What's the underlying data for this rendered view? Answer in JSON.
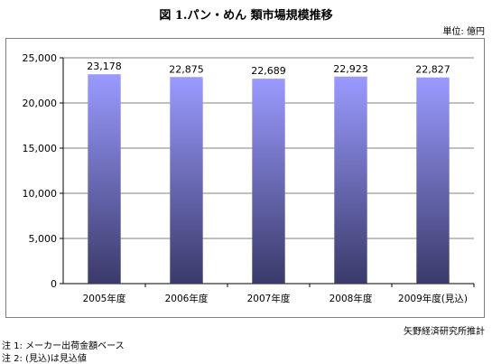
{
  "title": "図 1.パン・めん 類市場規模推移",
  "unit_label": "単位: 億円",
  "source": "矢野経済研究所推計",
  "notes": [
    "注 1:  メーカー出荷金額ベース",
    "注 2:  (見込)は見込値"
  ],
  "colors": {
    "bar_top": "#9a9aff",
    "bar_bottom": "#3a3a6a",
    "grid": "#808080"
  },
  "chart_data": {
    "type": "bar",
    "categories": [
      "2005年度",
      "2006年度",
      "2007年度",
      "2008年度",
      "2009年度(見込)"
    ],
    "values": [
      23178,
      22875,
      22689,
      22923,
      22827
    ],
    "value_labels": [
      "23,178",
      "22,875",
      "22,689",
      "22,923",
      "22,827"
    ],
    "ylim": [
      0,
      25000
    ],
    "yticks": [
      0,
      5000,
      10000,
      15000,
      20000,
      25000
    ],
    "ytick_labels": [
      "0",
      "5,000",
      "10,000",
      "15,000",
      "20,000",
      "25,000"
    ],
    "grid": true,
    "title": "図 1.パン・めん 類市場規模推移",
    "xlabel": "",
    "ylabel": ""
  }
}
